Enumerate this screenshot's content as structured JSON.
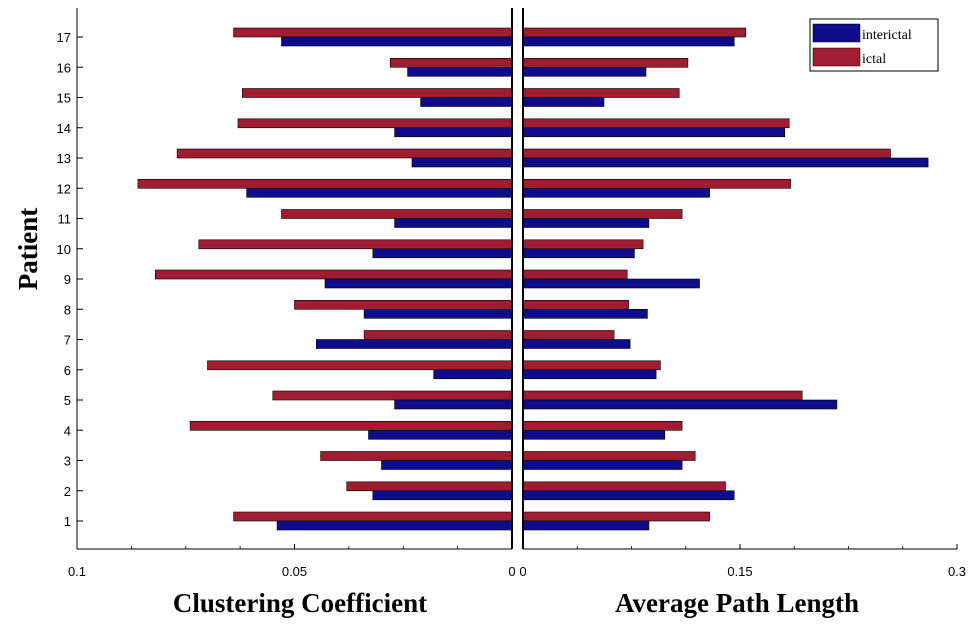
{
  "chart_data": {
    "type": "bar",
    "orientation": "horizontal-butterfly",
    "ylabel": "Patient",
    "categories": [
      "1",
      "2",
      "3",
      "4",
      "5",
      "6",
      "7",
      "8",
      "9",
      "10",
      "11",
      "12",
      "13",
      "14",
      "15",
      "16",
      "17"
    ],
    "panels": [
      {
        "xlabel": "Clustering Coefficient",
        "xlim": [
          0.1,
          0
        ],
        "xticks": [
          "0.1",
          "0.05",
          "0"
        ],
        "series": [
          {
            "name": "interictal",
            "values": [
              0.054,
              0.032,
              0.03,
              0.033,
              0.027,
              0.018,
              0.045,
              0.034,
              0.043,
              0.032,
              0.027,
              0.061,
              0.023,
              0.027,
              0.021,
              0.024,
              0.053
            ]
          },
          {
            "name": "ictal",
            "values": [
              0.064,
              0.038,
              0.044,
              0.074,
              0.055,
              0.07,
              0.034,
              0.05,
              0.082,
              0.072,
              0.053,
              0.086,
              0.077,
              0.063,
              0.062,
              0.028,
              0.064
            ]
          }
        ]
      },
      {
        "xlabel": "Average Path Length",
        "xlim": [
          0,
          0.3
        ],
        "xticks": [
          "0",
          "0.15",
          "0.3"
        ],
        "series": [
          {
            "name": "interictal",
            "values": [
              0.087,
              0.146,
              0.11,
              0.098,
              0.217,
              0.092,
              0.074,
              0.086,
              0.122,
              0.077,
              0.087,
              0.129,
              0.28,
              0.181,
              0.056,
              0.085,
              0.146
            ]
          },
          {
            "name": "ictal",
            "values": [
              0.129,
              0.14,
              0.119,
              0.11,
              0.193,
              0.095,
              0.063,
              0.073,
              0.072,
              0.083,
              0.11,
              0.185,
              0.254,
              0.184,
              0.108,
              0.114,
              0.154
            ]
          }
        ]
      }
    ],
    "legend": {
      "placement": "top-right",
      "entries": [
        "interictal",
        "ictal"
      ]
    },
    "colors": {
      "interictal": "#0d0d8c",
      "ictal": "#a01c30"
    },
    "grid": false
  }
}
